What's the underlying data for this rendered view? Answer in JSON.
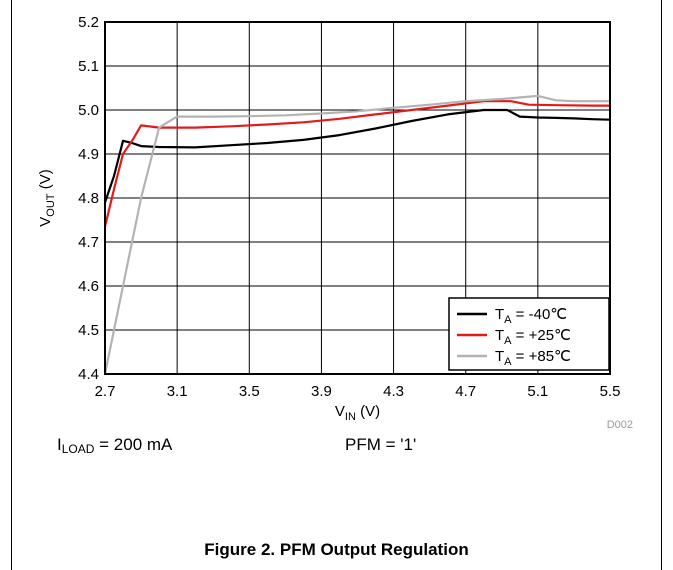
{
  "chart_data": {
    "type": "line",
    "xlabel": "V",
    "xlabel_sub": "IN",
    "xlabel_unit": " (V)",
    "ylabel": "V",
    "ylabel_sub": "OUT",
    "ylabel_unit": " (V)",
    "xlim": [
      2.7,
      5.5
    ],
    "ylim": [
      4.4,
      5.2
    ],
    "xticks": [
      "2.7",
      "3.1",
      "3.5",
      "3.9",
      "4.3",
      "4.7",
      "5.1",
      "5.5"
    ],
    "yticks": [
      "4.4",
      "4.5",
      "4.6",
      "4.7",
      "4.8",
      "4.9",
      "5.0",
      "5.1",
      "5.2"
    ],
    "grid": true,
    "legend_position": "bottom-right",
    "figure_id": "D002",
    "series": [
      {
        "name_prefix": "T",
        "name_sub": "A",
        "name_suffix": " = -40℃",
        "color": "#000000",
        "x": [
          2.7,
          2.75,
          2.8,
          2.85,
          2.9,
          3.0,
          3.2,
          3.4,
          3.6,
          3.8,
          4.0,
          4.2,
          4.4,
          4.6,
          4.8,
          4.93,
          5.0,
          5.1,
          5.2,
          5.3,
          5.4,
          5.5
        ],
        "y": [
          4.79,
          4.85,
          4.93,
          4.925,
          4.918,
          4.916,
          4.915,
          4.92,
          4.925,
          4.932,
          4.943,
          4.958,
          4.975,
          4.99,
          5.0,
          5.0,
          4.985,
          4.983,
          4.982,
          4.981,
          4.979,
          4.978
        ]
      },
      {
        "name_prefix": "T",
        "name_sub": "A",
        "name_suffix": " = +25℃",
        "color": "#e31a1c",
        "x": [
          2.7,
          2.75,
          2.8,
          2.85,
          2.9,
          3.0,
          3.2,
          3.4,
          3.6,
          3.8,
          4.0,
          4.2,
          4.4,
          4.6,
          4.8,
          4.95,
          5.05,
          5.2,
          5.4,
          5.5
        ],
        "y": [
          4.735,
          4.82,
          4.9,
          4.93,
          4.965,
          4.96,
          4.96,
          4.963,
          4.967,
          4.972,
          4.98,
          4.99,
          5.0,
          5.01,
          5.02,
          5.02,
          5.012,
          5.011,
          5.01,
          5.01
        ]
      },
      {
        "name_prefix": "T",
        "name_sub": "A",
        "name_suffix": " = +85℃",
        "color": "#b3b3b3",
        "x": [
          2.7,
          2.8,
          2.9,
          3.0,
          3.1,
          3.3,
          3.5,
          3.7,
          3.9,
          4.1,
          4.3,
          4.5,
          4.7,
          4.9,
          5.1,
          5.2,
          5.3,
          5.5
        ],
        "y": [
          4.4,
          4.6,
          4.8,
          4.96,
          4.985,
          4.985,
          4.986,
          4.988,
          4.992,
          4.997,
          5.005,
          5.012,
          5.02,
          5.025,
          5.032,
          5.022,
          5.02,
          5.02
        ]
      }
    ]
  },
  "notes": {
    "load_prefix": "I",
    "load_sub": "LOAD",
    "load_suffix": " = 200 mA",
    "pfm": "PFM = '1'"
  },
  "caption": "Figure 2. PFM Output Regulation"
}
